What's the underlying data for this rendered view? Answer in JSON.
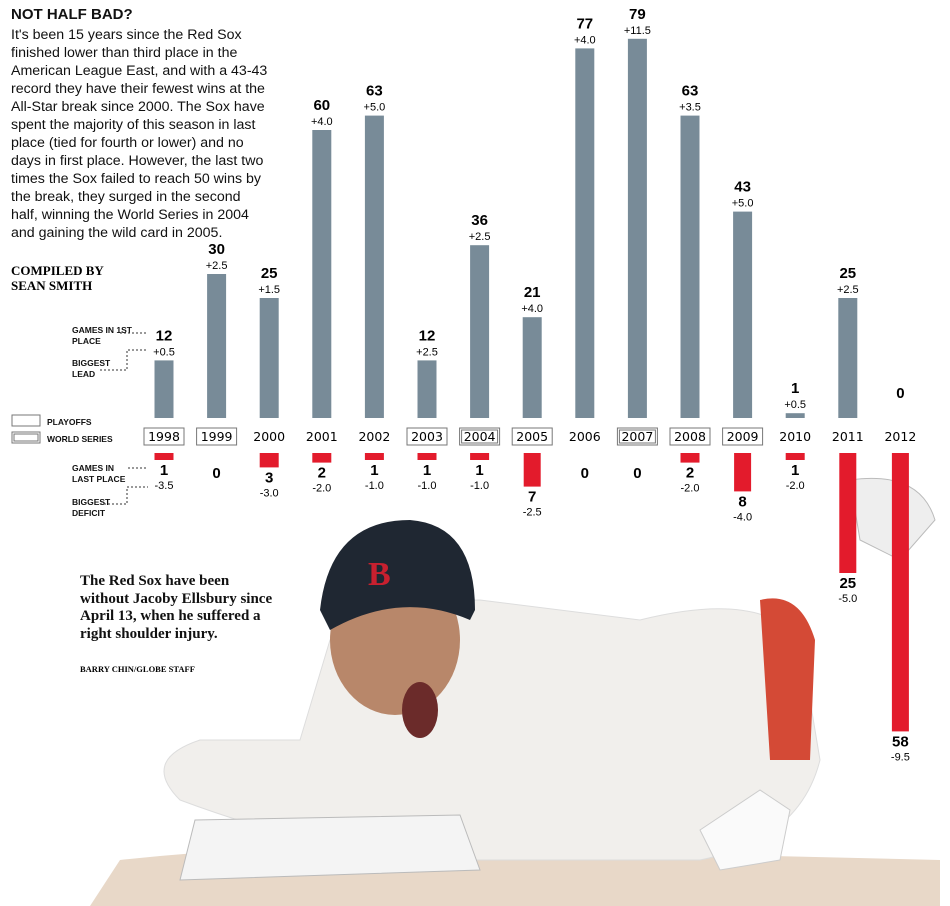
{
  "title": "NOT HALF BAD?",
  "intro": "It's been 15 years since the Red Sox finished lower than third place in the American League East, and with a 43-43 record they have their fewest wins at the All-Star break since 2000. The Sox have spent the majority of this season in last place (tied for fourth or lower) and no days in first place. However, the last two times the Sox failed to reach 50 wins by the break, they surged in the second half, winning the World Series in 2004 and gaining the wild card in 2005.",
  "credit": "COMPILED BY SEAN SMITH",
  "key": {
    "games_first": "GAMES IN 1ST PLACE",
    "biggest_lead": "BIGGEST LEAD",
    "playoffs": "PLAYOFFS",
    "world_series": "WORLD SERIES",
    "games_last": "GAMES IN LAST PLACE",
    "biggest_deficit": "BIGGEST DEFICIT"
  },
  "caption": "The Red Sox have been without Jacoby Ellsbury since April 13, when he suffered a right shoulder injury.",
  "photo_credit": "BARRY CHIN/GLOBE STAFF",
  "colors": {
    "first_place_bar": "#788b98",
    "last_place_bar": "#e31b2c"
  },
  "chart_data": {
    "type": "bar",
    "categories": [
      "1998",
      "1999",
      "2000",
      "2001",
      "2002",
      "2003",
      "2004",
      "2005",
      "2006",
      "2007",
      "2008",
      "2009",
      "2010",
      "2011",
      "2012"
    ],
    "series": [
      {
        "name": "GAMES IN 1ST PLACE",
        "values": [
          12,
          30,
          25,
          60,
          63,
          12,
          36,
          21,
          77,
          79,
          63,
          43,
          1,
          25,
          0
        ]
      },
      {
        "name": "GAMES IN LAST PLACE",
        "values": [
          1,
          0,
          3,
          2,
          1,
          1,
          1,
          7,
          0,
          0,
          2,
          8,
          1,
          25,
          58
        ]
      }
    ],
    "biggest_lead": [
      "+0.5",
      "+2.5",
      "+1.5",
      "+4.0",
      "+5.0",
      "+2.5",
      "+2.5",
      "+4.0",
      "+4.0",
      "+11.5",
      "+3.5",
      "+5.0",
      "+0.5",
      "+2.5",
      ""
    ],
    "biggest_deficit": [
      "-3.5",
      "",
      "-3.0",
      "-2.0",
      "-1.0",
      "-1.0",
      "-1.0",
      "-2.5",
      "",
      "",
      "-2.0",
      "-4.0",
      "-2.0",
      "-5.0",
      "-9.5"
    ],
    "postseason": [
      "playoffs",
      "playoffs",
      "",
      "",
      "",
      "playoffs",
      "world-series",
      "playoffs",
      "",
      "world-series",
      "playoffs",
      "playoffs",
      "",
      "",
      ""
    ]
  }
}
